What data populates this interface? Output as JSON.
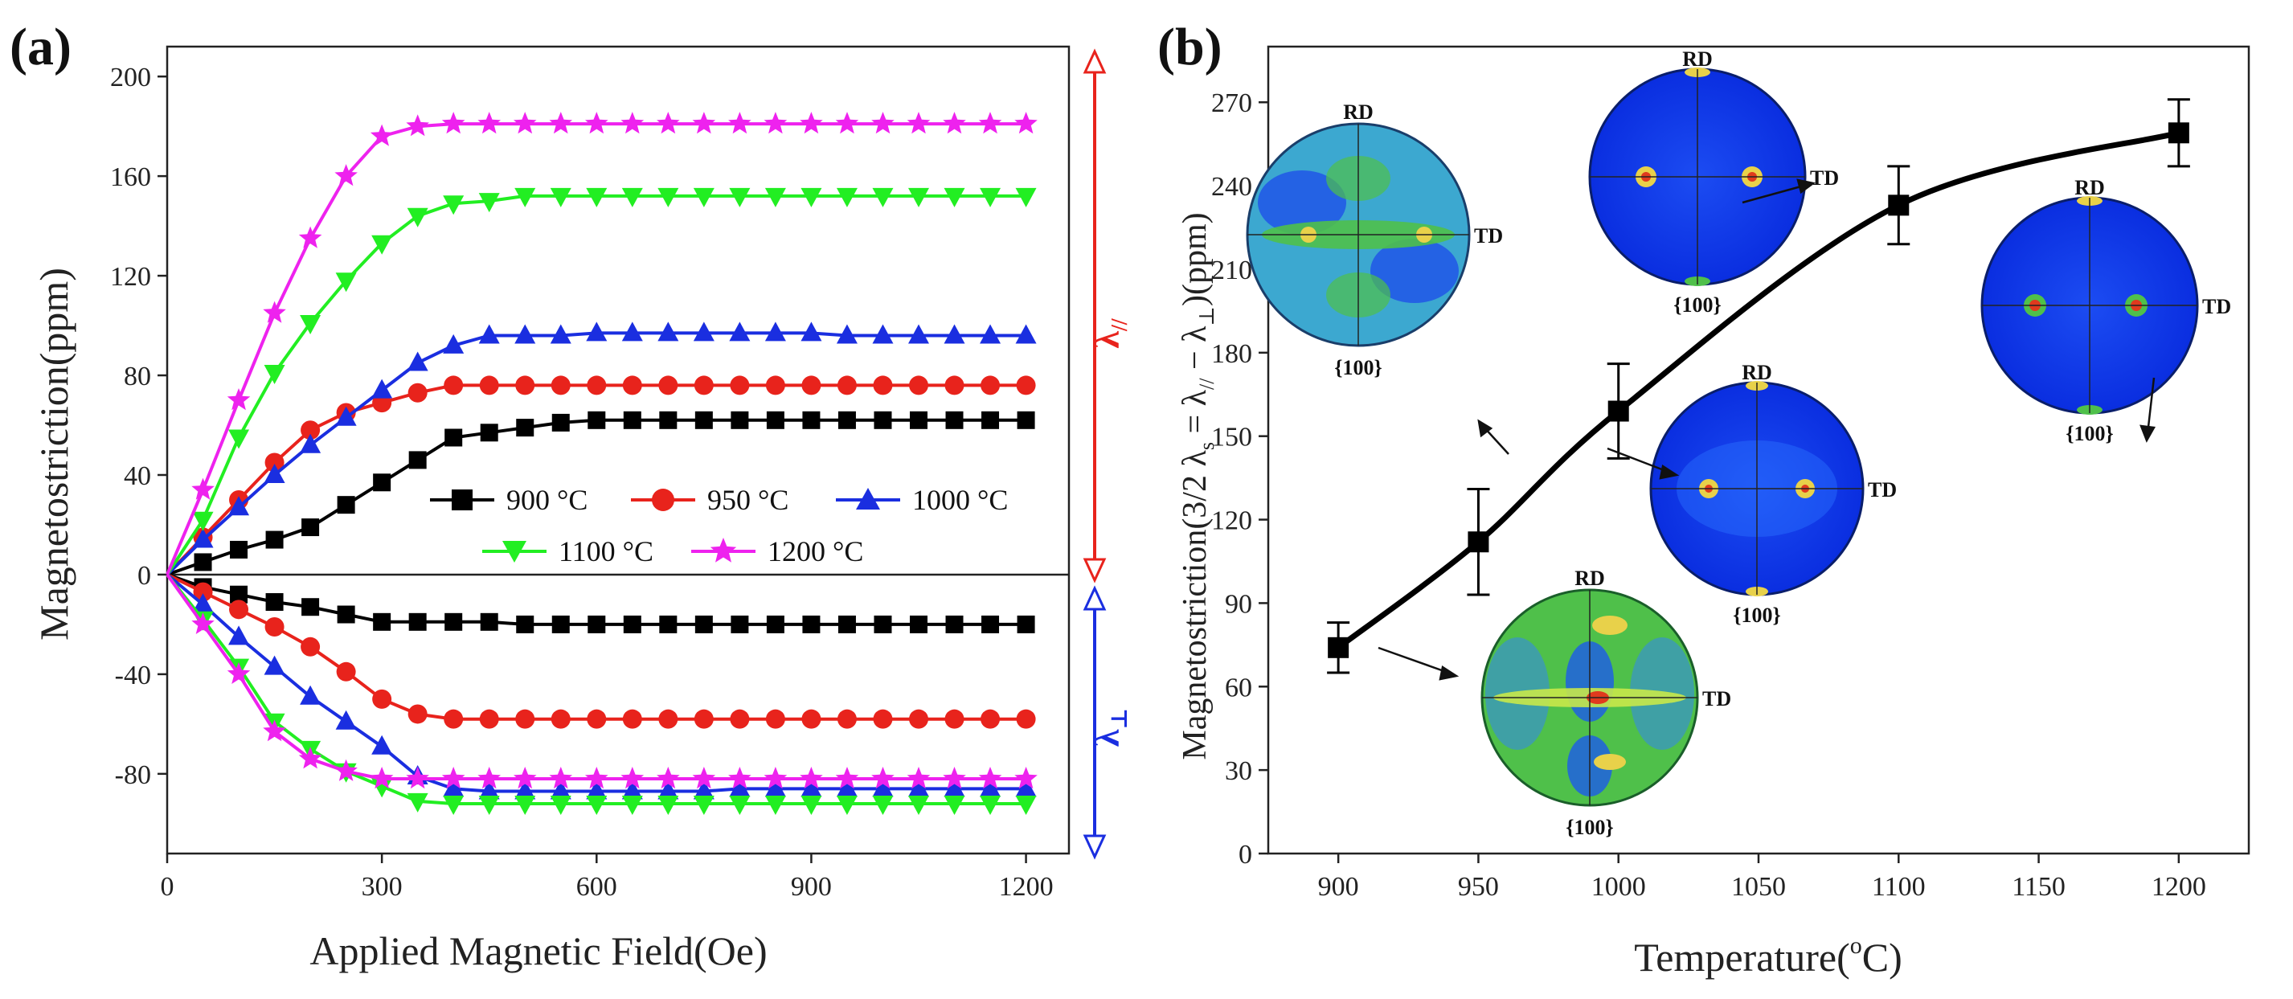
{
  "chart_data": [
    {
      "panel": "(a)",
      "type": "line",
      "xlabel": "Applied Magnetic Field(Oe)",
      "ylabel": "Magnetostriction(ppm)",
      "xlim": [
        0,
        1260
      ],
      "ylim": [
        -112,
        212
      ],
      "xticks": [
        0,
        300,
        600,
        900,
        1200
      ],
      "yticks": [
        -80,
        -40,
        0,
        40,
        80,
        120,
        160,
        200
      ],
      "legend_placement": "center-right",
      "x": [
        0,
        50,
        100,
        150,
        200,
        250,
        300,
        350,
        400,
        450,
        500,
        550,
        600,
        650,
        700,
        750,
        800,
        850,
        900,
        950,
        1000,
        1050,
        1100,
        1150,
        1200
      ],
      "series": [
        {
          "name": "900 °C",
          "color": "#000000",
          "marker": "square",
          "parallel": [
            0,
            5,
            10,
            14,
            19,
            28,
            37,
            46,
            55,
            57,
            59,
            61,
            62,
            62,
            62,
            62,
            62,
            62,
            62,
            62,
            62,
            62,
            62,
            62,
            62
          ],
          "perpendicular": [
            0,
            -5,
            -8,
            -11,
            -13,
            -16,
            -19,
            -19,
            -19,
            -19,
            -20,
            -20,
            -20,
            -20,
            -20,
            -20,
            -20,
            -20,
            -20,
            -20,
            -20,
            -20,
            -20,
            -20,
            -20
          ]
        },
        {
          "name": "950 °C",
          "color": "#e8231c",
          "marker": "circle",
          "parallel": [
            0,
            15,
            30,
            45,
            58,
            65,
            69,
            73,
            76,
            76,
            76,
            76,
            76,
            76,
            76,
            76,
            76,
            76,
            76,
            76,
            76,
            76,
            76,
            76,
            76
          ],
          "perpendicular": [
            0,
            -7,
            -14,
            -21,
            -29,
            -39,
            -50,
            -56,
            -58,
            -58,
            -58,
            -58,
            -58,
            -58,
            -58,
            -58,
            -58,
            -58,
            -58,
            -58,
            -58,
            -58,
            -58,
            -58,
            -58
          ]
        },
        {
          "name": "1000 °C",
          "color": "#1a2ee0",
          "marker": "triangle-up",
          "parallel": [
            0,
            14,
            27,
            40,
            52,
            63,
            74,
            85,
            92,
            96,
            96,
            96,
            97,
            97,
            97,
            97,
            97,
            97,
            97,
            96,
            96,
            96,
            96,
            96,
            96
          ],
          "perpendicular": [
            0,
            -12,
            -25,
            -37,
            -49,
            -59,
            -69,
            -81,
            -86,
            -87,
            -87,
            -87,
            -87,
            -87,
            -87,
            -87,
            -86,
            -86,
            -86,
            -86,
            -86,
            -86,
            -86,
            -86,
            -86
          ]
        },
        {
          "name": "1100 °C",
          "color": "#22ee22",
          "marker": "triangle-down",
          "parallel": [
            0,
            22,
            55,
            81,
            101,
            118,
            133,
            144,
            149,
            150,
            152,
            152,
            152,
            152,
            152,
            152,
            152,
            152,
            152,
            152,
            152,
            152,
            152,
            152,
            152
          ],
          "perpendicular": [
            0,
            -18,
            -37,
            -59,
            -70,
            -79,
            -85,
            -91,
            -92,
            -92,
            -92,
            -92,
            -92,
            -92,
            -92,
            -92,
            -92,
            -92,
            -92,
            -92,
            -92,
            -92,
            -92,
            -92,
            -92
          ]
        },
        {
          "name": "1200 °C",
          "color": "#ee22ee",
          "marker": "star",
          "parallel": [
            0,
            34,
            70,
            105,
            135,
            160,
            176,
            180,
            181,
            181,
            181,
            181,
            181,
            181,
            181,
            181,
            181,
            181,
            181,
            181,
            181,
            181,
            181,
            181,
            181
          ],
          "perpendicular": [
            0,
            -20,
            -40,
            -63,
            -74,
            -79,
            -82,
            -82,
            -82,
            -82,
            -82,
            -82,
            -82,
            -82,
            -82,
            -82,
            -82,
            -82,
            -82,
            -82,
            -82,
            -82,
            -82,
            -82,
            -82
          ]
        }
      ],
      "annotations": [
        {
          "label": "λ//",
          "color": "#e8231c",
          "range": [
            0,
            200
          ]
        },
        {
          "label": "λ⊥",
          "color": "#1a2ee0",
          "range": [
            -100,
            0
          ]
        }
      ]
    },
    {
      "panel": "(b)",
      "type": "line",
      "xlabel": "Temperature(°C)",
      "ylabel": "Magnetostriction(3/2 λs = λ// − λ⊥)(ppm)",
      "xlim": [
        875,
        1225
      ],
      "ylim": [
        0,
        290
      ],
      "xticks": [
        900,
        950,
        1000,
        1050,
        1100,
        1150,
        1200
      ],
      "yticks": [
        0,
        30,
        60,
        90,
        120,
        150,
        180,
        210,
        240,
        270
      ],
      "series": [
        {
          "name": "3/2 λs",
          "color": "#000000",
          "marker": "square",
          "x": [
            900,
            950,
            1000,
            1100,
            1200
          ],
          "y": [
            74,
            112,
            159,
            233,
            259
          ],
          "error": [
            9,
            19,
            17,
            14,
            12
          ]
        }
      ],
      "pole_figures": [
        {
          "temperature": 900,
          "title": "{100}",
          "rd": "RD",
          "td": "TD"
        },
        {
          "temperature": 950,
          "title": "{100}",
          "rd": "RD",
          "td": "TD"
        },
        {
          "temperature": 1000,
          "title": "{100}",
          "rd": "RD",
          "td": "TD"
        },
        {
          "temperature": 1100,
          "title": "{100}",
          "rd": "RD",
          "td": "TD"
        },
        {
          "temperature": 1200,
          "title": "{100}",
          "rd": "RD",
          "td": "TD"
        }
      ]
    }
  ],
  "text": {
    "a": {
      "panel_label": "(a)",
      "xlabel": "Applied Magnetic Field(Oe)",
      "ylabel": "Magnetostriction(ppm)",
      "lambda_parallel_main": "λ",
      "lambda_parallel_sub": "//",
      "lambda_perp_main": "λ",
      "lambda_perp_sub": "⊥"
    },
    "b": {
      "panel_label": "(b)",
      "xlabel_main": "Temperature(",
      "xlabel_sup": "o",
      "xlabel_end": "C)",
      "ylabel_p1": "Magnetostriction(3/2 λ",
      "ylabel_s1": "s",
      "ylabel_p2": " = λ",
      "ylabel_s2": "//",
      "ylabel_p3": " − λ",
      "ylabel_s3": "⊥",
      "ylabel_p4": ")(ppm)"
    }
  }
}
